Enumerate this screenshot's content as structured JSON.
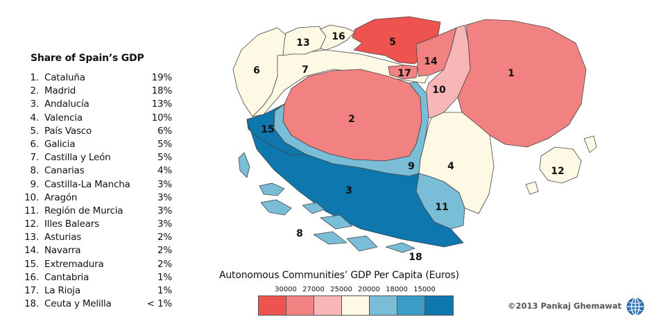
{
  "list": {
    "title": "Share of Spain’s GDP",
    "items": [
      {
        "rank": "1.",
        "name": "Cataluña",
        "share": "19%"
      },
      {
        "rank": "2.",
        "name": "Madrid",
        "share": "18%"
      },
      {
        "rank": "3.",
        "name": "Andalucía",
        "share": "13%"
      },
      {
        "rank": "4.",
        "name": "Valencia",
        "share": "10%"
      },
      {
        "rank": "5.",
        "name": "País Vasco",
        "share": "6%"
      },
      {
        "rank": "6.",
        "name": "Galicia",
        "share": "5%"
      },
      {
        "rank": "7.",
        "name": "Castilla y León",
        "share": "5%"
      },
      {
        "rank": "8.",
        "name": "Canarias",
        "share": "4%"
      },
      {
        "rank": "9.",
        "name": "Castilla-La Mancha",
        "share": "3%"
      },
      {
        "rank": "10.",
        "name": "Aragón",
        "share": "3%"
      },
      {
        "rank": "11.",
        "name": "Región de Murcia",
        "share": "3%"
      },
      {
        "rank": "12.",
        "name": "Illes Balears",
        "share": "3%"
      },
      {
        "rank": "13.",
        "name": "Asturias",
        "share": "2%"
      },
      {
        "rank": "14.",
        "name": "Navarra",
        "share": "2%"
      },
      {
        "rank": "15.",
        "name": "Extremadura",
        "share": "2%"
      },
      {
        "rank": "16.",
        "name": "Cantabria",
        "share": "1%"
      },
      {
        "rank": "17.",
        "name": "La Rioja",
        "share": "1%"
      },
      {
        "rank": "18.",
        "name": "Ceuta y Melilla",
        "share": "< 1%"
      }
    ]
  },
  "map_labels": {
    "r1": "1",
    "r2": "2",
    "r3": "3",
    "r4": "4",
    "r5": "5",
    "r6": "6",
    "r7": "7",
    "r8": "8",
    "r9": "9",
    "r10": "10",
    "r11": "11",
    "r12": "12",
    "r13": "13",
    "r14": "14",
    "r15": "15",
    "r16": "16",
    "r17": "17",
    "r18": "18"
  },
  "legend": {
    "title": "Autonomous Communities’ GDP Per Capita (Euros)",
    "ticks": [
      "30000",
      "27000",
      "25000",
      "20000",
      "18000",
      "15000"
    ],
    "colors": [
      "#ef5350",
      "#f28181",
      "#f8b6b6",
      "#fdf9e4",
      "#79bdd7",
      "#3c9dc8",
      "#0e78ae"
    ]
  },
  "region_colors": {
    "r1": "#f28181",
    "r2": "#f28181",
    "r3": "#0e78ae",
    "r4": "#fdf9e4",
    "r5": "#ef5350",
    "r6": "#fdf9e4",
    "r7": "#fdf9e4",
    "r8": "#79bdd7",
    "r9": "#79bdd7",
    "r10": "#f8b6b6",
    "r11": "#79bdd7",
    "r12": "#fdf9e4",
    "r13": "#fdf9e4",
    "r14": "#f28181",
    "r15": "#0e78ae",
    "r16": "#fdf9e4",
    "r17": "#f28181",
    "r18": "#79bdd7"
  },
  "credit": "©2013 Pankaj Ghemawat"
}
